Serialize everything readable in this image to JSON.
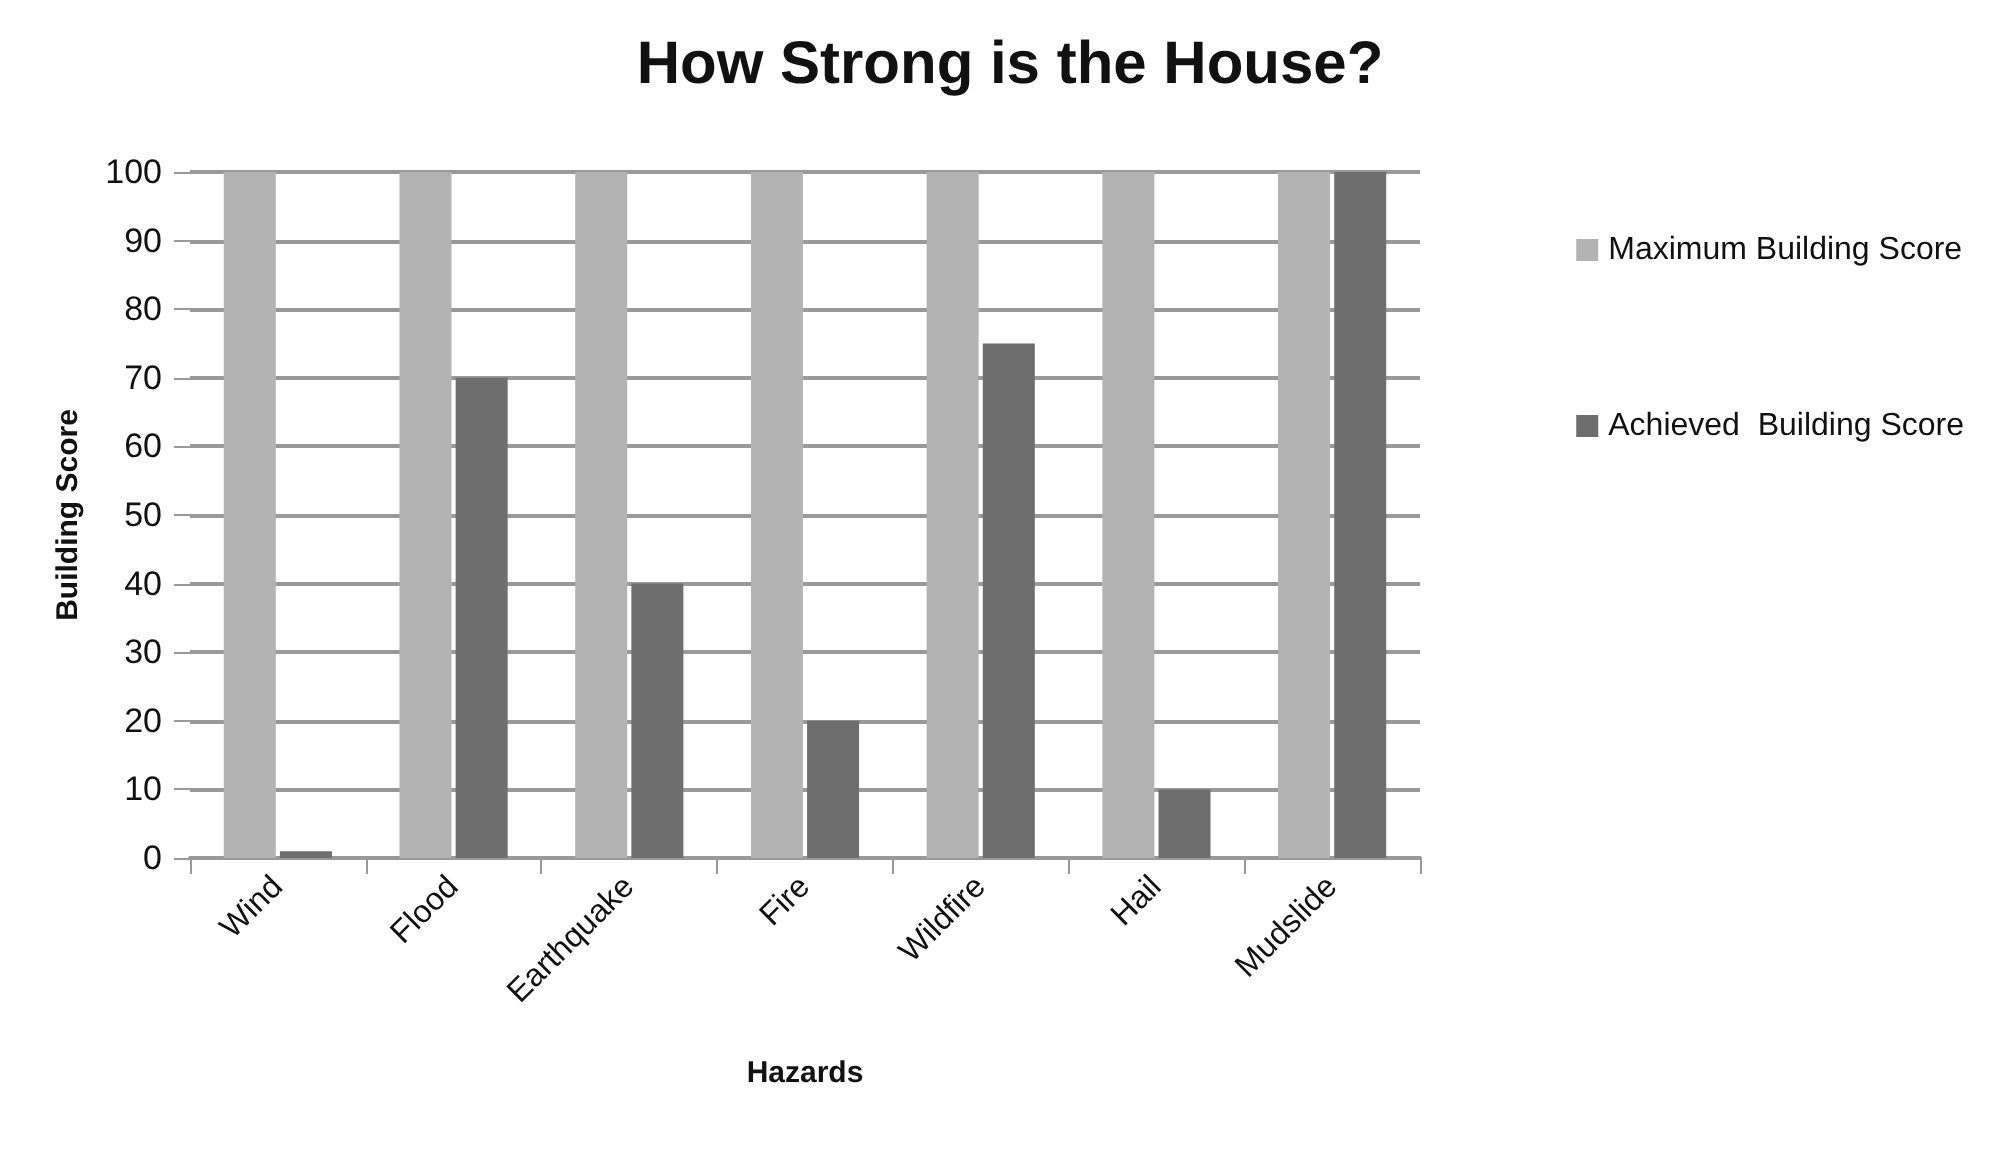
{
  "chart_data": {
    "type": "bar",
    "title": "How Strong is the House?",
    "xlabel": "Hazards",
    "ylabel": "Building Score",
    "categories": [
      "Wind",
      "Flood",
      "Earthquake",
      "Fire",
      "Wildfire",
      "Hail",
      "Mudslide"
    ],
    "series": [
      {
        "name": "Maximum Building Score",
        "color": "#b3b3b3",
        "values": [
          100,
          100,
          100,
          100,
          100,
          100,
          100
        ]
      },
      {
        "name": "Achieved  Building Score",
        "color": "#6e6e6e",
        "values": [
          1,
          70,
          40,
          20,
          75,
          10,
          100
        ]
      }
    ],
    "ylim": [
      0,
      100
    ],
    "yticks": [
      0,
      10,
      20,
      30,
      40,
      50,
      60,
      70,
      80,
      90,
      100
    ],
    "grid": "y",
    "legend": "right"
  }
}
